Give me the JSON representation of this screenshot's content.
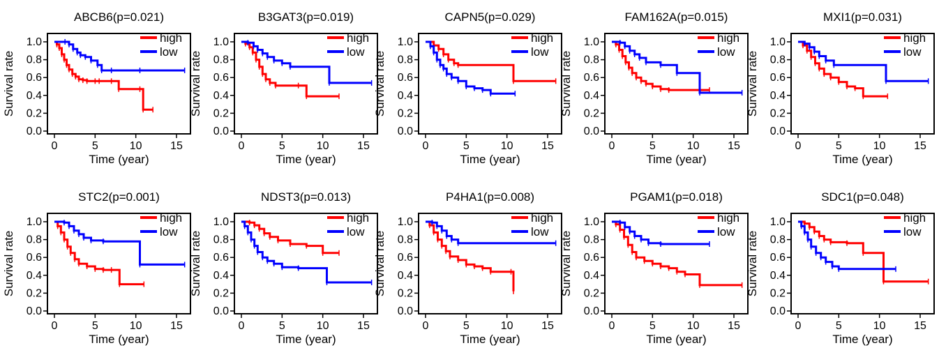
{
  "colors": {
    "high": "#ff0000",
    "low": "#0000ff",
    "axis": "#000000"
  },
  "chart_data": [
    {
      "type": "line",
      "title": "ABCB6(p=0.021)",
      "xlabel": "Time (year)",
      "ylabel": "Survival rate",
      "xlim": [
        0,
        16
      ],
      "ylim": [
        0,
        1
      ],
      "xticks": [
        "0",
        "5",
        "10",
        "15"
      ],
      "yticks": [
        "0.0",
        "0.2",
        "0.4",
        "0.6",
        "0.8",
        "1.0"
      ],
      "legend": {
        "position": "top-right",
        "entries": [
          "high",
          "low"
        ]
      },
      "series": [
        {
          "name": "high",
          "x": [
            0,
            0.3,
            0.6,
            0.9,
            1.2,
            1.5,
            1.8,
            2.2,
            2.6,
            3.0,
            3.5,
            4.0,
            5.0,
            5.5,
            7.0,
            7.9,
            10.5,
            10.9,
            12.1
          ],
          "y": [
            1.0,
            0.97,
            0.93,
            0.86,
            0.8,
            0.74,
            0.69,
            0.64,
            0.61,
            0.58,
            0.57,
            0.56,
            0.56,
            0.56,
            0.56,
            0.47,
            0.47,
            0.24,
            0.24
          ]
        },
        {
          "name": "low",
          "x": [
            0,
            1.3,
            1.8,
            2.3,
            2.8,
            3.2,
            3.8,
            4.5,
            5.3,
            5.8,
            7.0,
            10.5,
            16.0
          ],
          "y": [
            1.0,
            1.0,
            0.97,
            0.92,
            0.88,
            0.85,
            0.83,
            0.79,
            0.74,
            0.68,
            0.68,
            0.68,
            0.68
          ]
        }
      ]
    },
    {
      "type": "line",
      "title": "B3GAT3(p=0.019)",
      "xlabel": "Time (year)",
      "ylabel": "Survival rate",
      "xlim": [
        0,
        16
      ],
      "ylim": [
        0,
        1
      ],
      "xticks": [
        "0",
        "5",
        "10",
        "15"
      ],
      "yticks": [
        "0.0",
        "0.2",
        "0.4",
        "0.6",
        "0.8",
        "1.0"
      ],
      "legend": {
        "position": "top-right",
        "entries": [
          "high",
          "low"
        ]
      },
      "series": [
        {
          "name": "high",
          "x": [
            0,
            0.5,
            1.0,
            1.4,
            1.8,
            2.2,
            2.6,
            3.0,
            3.5,
            4.2,
            7.0,
            8.0,
            12.0
          ],
          "y": [
            1.0,
            0.98,
            0.94,
            0.88,
            0.8,
            0.72,
            0.64,
            0.58,
            0.54,
            0.51,
            0.51,
            0.39,
            0.39
          ]
        },
        {
          "name": "low",
          "x": [
            0,
            0.8,
            1.5,
            2.0,
            2.6,
            3.2,
            4.0,
            5.0,
            6.0,
            10.8,
            16.0
          ],
          "y": [
            1.0,
            0.99,
            0.95,
            0.91,
            0.87,
            0.83,
            0.79,
            0.76,
            0.72,
            0.54,
            0.54
          ]
        }
      ]
    },
    {
      "type": "line",
      "title": "CAPN5(p=0.029)",
      "xlabel": "Time (year)",
      "ylabel": "Survival rate",
      "xlim": [
        0,
        16
      ],
      "ylim": [
        0,
        1
      ],
      "xticks": [
        "0",
        "5",
        "10",
        "15"
      ],
      "yticks": [
        "0.0",
        "0.2",
        "0.4",
        "0.6",
        "0.8",
        "1.0"
      ],
      "legend": {
        "position": "top-right",
        "entries": [
          "high",
          "low"
        ]
      },
      "series": [
        {
          "name": "high",
          "x": [
            0,
            1.0,
            1.6,
            2.2,
            2.8,
            3.5,
            4.0,
            10.8,
            16.0
          ],
          "y": [
            1.0,
            0.96,
            0.92,
            0.86,
            0.8,
            0.76,
            0.74,
            0.56,
            0.56
          ]
        },
        {
          "name": "low",
          "x": [
            0,
            0.6,
            1.0,
            1.4,
            1.8,
            2.2,
            2.6,
            3.2,
            4.0,
            5.0,
            6.0,
            7.0,
            8.0,
            11.0
          ],
          "y": [
            1.0,
            0.95,
            0.88,
            0.8,
            0.74,
            0.7,
            0.64,
            0.6,
            0.56,
            0.5,
            0.48,
            0.46,
            0.42,
            0.42
          ]
        }
      ]
    },
    {
      "type": "line",
      "title": "FAM162A(p=0.015)",
      "xlabel": "Time (year)",
      "ylabel": "Survival rate",
      "xlim": [
        0,
        16
      ],
      "ylim": [
        0,
        1
      ],
      "xticks": [
        "0",
        "5",
        "10",
        "15"
      ],
      "yticks": [
        "0.0",
        "0.2",
        "0.4",
        "0.6",
        "0.8",
        "1.0"
      ],
      "legend": {
        "position": "top-right",
        "entries": [
          "high",
          "low"
        ]
      },
      "series": [
        {
          "name": "high",
          "x": [
            0,
            0.5,
            0.9,
            1.3,
            1.7,
            2.1,
            2.5,
            3.0,
            3.6,
            4.2,
            5.0,
            6.0,
            7.0,
            12.0
          ],
          "y": [
            1.0,
            0.97,
            0.91,
            0.84,
            0.77,
            0.71,
            0.65,
            0.6,
            0.56,
            0.53,
            0.5,
            0.47,
            0.46,
            0.46
          ]
        },
        {
          "name": "low",
          "x": [
            0,
            1.0,
            1.6,
            2.2,
            2.8,
            3.4,
            4.2,
            6.0,
            8.0,
            10.8,
            16.0
          ],
          "y": [
            1.0,
            0.99,
            0.95,
            0.9,
            0.86,
            0.82,
            0.77,
            0.74,
            0.65,
            0.43,
            0.43
          ]
        }
      ]
    },
    {
      "type": "line",
      "title": "MXI1(p=0.031)",
      "xlabel": "Time (year)",
      "ylabel": "Survival rate",
      "xlim": [
        0,
        16
      ],
      "ylim": [
        0,
        1
      ],
      "xticks": [
        "0",
        "5",
        "10",
        "15"
      ],
      "yticks": [
        "0.0",
        "0.2",
        "0.4",
        "0.6",
        "0.8",
        "1.0"
      ],
      "legend": {
        "position": "top-right",
        "entries": [
          "high",
          "low"
        ]
      },
      "series": [
        {
          "name": "high",
          "x": [
            0,
            0.6,
            1.1,
            1.6,
            2.1,
            2.6,
            3.2,
            4.0,
            5.0,
            6.0,
            7.0,
            8.0,
            11.0
          ],
          "y": [
            1.0,
            0.96,
            0.9,
            0.83,
            0.76,
            0.7,
            0.64,
            0.6,
            0.55,
            0.5,
            0.48,
            0.39,
            0.39
          ]
        },
        {
          "name": "low",
          "x": [
            0,
            0.8,
            1.4,
            2.0,
            2.6,
            3.4,
            4.4,
            10.8,
            16.0
          ],
          "y": [
            1.0,
            0.98,
            0.94,
            0.89,
            0.84,
            0.79,
            0.74,
            0.56,
            0.56
          ]
        }
      ]
    },
    {
      "type": "line",
      "title": "STC2(p=0.001)",
      "xlabel": "Time (year)",
      "ylabel": "Survival rate",
      "xlim": [
        0,
        16
      ],
      "ylim": [
        0,
        1
      ],
      "xticks": [
        "0",
        "5",
        "10",
        "15"
      ],
      "yticks": [
        "0.0",
        "0.2",
        "0.4",
        "0.6",
        "0.8",
        "1.0"
      ],
      "legend": {
        "position": "top-right",
        "entries": [
          "high",
          "low"
        ]
      },
      "series": [
        {
          "name": "high",
          "x": [
            0,
            0.4,
            0.8,
            1.2,
            1.6,
            2.0,
            2.5,
            3.0,
            4.0,
            5.0,
            6.0,
            7.0,
            8.0,
            11.0
          ],
          "y": [
            1.0,
            0.95,
            0.88,
            0.8,
            0.72,
            0.65,
            0.58,
            0.53,
            0.5,
            0.47,
            0.46,
            0.46,
            0.3,
            0.3
          ]
        },
        {
          "name": "low",
          "x": [
            0,
            1.2,
            1.8,
            2.4,
            3.0,
            3.6,
            4.5,
            6.0,
            10.5,
            16.0
          ],
          "y": [
            1.0,
            0.99,
            0.95,
            0.9,
            0.86,
            0.82,
            0.79,
            0.78,
            0.52,
            0.52
          ]
        }
      ]
    },
    {
      "type": "line",
      "title": "NDST3(p=0.013)",
      "xlabel": "Time (year)",
      "ylabel": "Survival rate",
      "xlim": [
        0,
        16
      ],
      "ylim": [
        0,
        1
      ],
      "xticks": [
        "0",
        "5",
        "10",
        "15"
      ],
      "yticks": [
        "0.0",
        "0.2",
        "0.4",
        "0.6",
        "0.8",
        "1.0"
      ],
      "legend": {
        "position": "top-right",
        "entries": [
          "high",
          "low"
        ]
      },
      "series": [
        {
          "name": "high",
          "x": [
            0,
            1.0,
            1.6,
            2.2,
            2.8,
            3.5,
            4.5,
            6.0,
            8.0,
            10.0,
            12.0
          ],
          "y": [
            1.0,
            0.99,
            0.96,
            0.92,
            0.87,
            0.83,
            0.79,
            0.75,
            0.73,
            0.65,
            0.65
          ]
        },
        {
          "name": "low",
          "x": [
            0,
            0.4,
            0.8,
            1.2,
            1.6,
            2.0,
            2.6,
            3.2,
            4.0,
            5.0,
            7.0,
            10.5,
            16.0
          ],
          "y": [
            1.0,
            0.95,
            0.88,
            0.8,
            0.73,
            0.66,
            0.6,
            0.56,
            0.53,
            0.49,
            0.48,
            0.32,
            0.32
          ]
        }
      ]
    },
    {
      "type": "line",
      "title": "P4HA1(p=0.008)",
      "xlabel": "Time (year)",
      "ylabel": "Survival rate",
      "xlim": [
        0,
        16
      ],
      "ylim": [
        0,
        1
      ],
      "xticks": [
        "0",
        "5",
        "10",
        "15"
      ],
      "yticks": [
        "0.0",
        "0.2",
        "0.4",
        "0.6",
        "0.8",
        "1.0"
      ],
      "legend": {
        "position": "top-right",
        "entries": [
          "high",
          "low"
        ]
      },
      "series": [
        {
          "name": "high",
          "x": [
            0,
            0.5,
            1.0,
            1.5,
            2.0,
            2.5,
            3.0,
            4.0,
            5.0,
            6.0,
            7.0,
            8.0,
            10.5,
            10.8
          ],
          "y": [
            1.0,
            0.96,
            0.88,
            0.8,
            0.73,
            0.67,
            0.61,
            0.57,
            0.52,
            0.5,
            0.48,
            0.44,
            0.44,
            0.22
          ]
        },
        {
          "name": "low",
          "x": [
            0,
            0.8,
            1.4,
            2.0,
            2.6,
            3.2,
            4.0,
            16.0
          ],
          "y": [
            1.0,
            0.99,
            0.95,
            0.9,
            0.84,
            0.8,
            0.76,
            0.76
          ]
        }
      ]
    },
    {
      "type": "line",
      "title": "PGAM1(p=0.018)",
      "xlabel": "Time (year)",
      "ylabel": "Survival rate",
      "xlim": [
        0,
        16
      ],
      "ylim": [
        0,
        1
      ],
      "xticks": [
        "0",
        "5",
        "10",
        "15"
      ],
      "yticks": [
        "0.0",
        "0.2",
        "0.4",
        "0.6",
        "0.8",
        "1.0"
      ],
      "legend": {
        "position": "top-right",
        "entries": [
          "high",
          "low"
        ]
      },
      "series": [
        {
          "name": "high",
          "x": [
            0,
            0.5,
            1.0,
            1.5,
            2.0,
            2.5,
            3.0,
            4.0,
            5.0,
            6.0,
            7.0,
            8.0,
            9.0,
            10.8,
            16.0
          ],
          "y": [
            1.0,
            0.97,
            0.91,
            0.83,
            0.74,
            0.66,
            0.6,
            0.56,
            0.53,
            0.5,
            0.48,
            0.44,
            0.41,
            0.29,
            0.29
          ]
        },
        {
          "name": "low",
          "x": [
            0,
            1.0,
            1.6,
            2.2,
            2.8,
            3.6,
            4.5,
            6.0,
            12.0
          ],
          "y": [
            1.0,
            0.99,
            0.94,
            0.89,
            0.84,
            0.8,
            0.76,
            0.75,
            0.75
          ]
        }
      ]
    },
    {
      "type": "line",
      "title": "SDC1(p=0.048)",
      "xlabel": "Time (year)",
      "ylabel": "Survival rate",
      "xlim": [
        0,
        16
      ],
      "ylim": [
        0,
        1
      ],
      "xticks": [
        "0",
        "5",
        "10",
        "15"
      ],
      "yticks": [
        "0.0",
        "0.2",
        "0.4",
        "0.6",
        "0.8",
        "1.0"
      ],
      "legend": {
        "position": "top-right",
        "entries": [
          "high",
          "low"
        ]
      },
      "series": [
        {
          "name": "high",
          "x": [
            0,
            0.8,
            1.4,
            2.0,
            2.6,
            3.2,
            4.0,
            6.0,
            8.0,
            10.5,
            16.0
          ],
          "y": [
            1.0,
            0.98,
            0.94,
            0.89,
            0.84,
            0.8,
            0.77,
            0.76,
            0.65,
            0.33,
            0.33
          ]
        },
        {
          "name": "low",
          "x": [
            0,
            0.4,
            0.8,
            1.2,
            1.6,
            2.2,
            2.8,
            3.4,
            4.2,
            5.0,
            12.0
          ],
          "y": [
            1.0,
            0.95,
            0.88,
            0.8,
            0.72,
            0.65,
            0.6,
            0.55,
            0.5,
            0.47,
            0.47
          ]
        }
      ]
    }
  ]
}
